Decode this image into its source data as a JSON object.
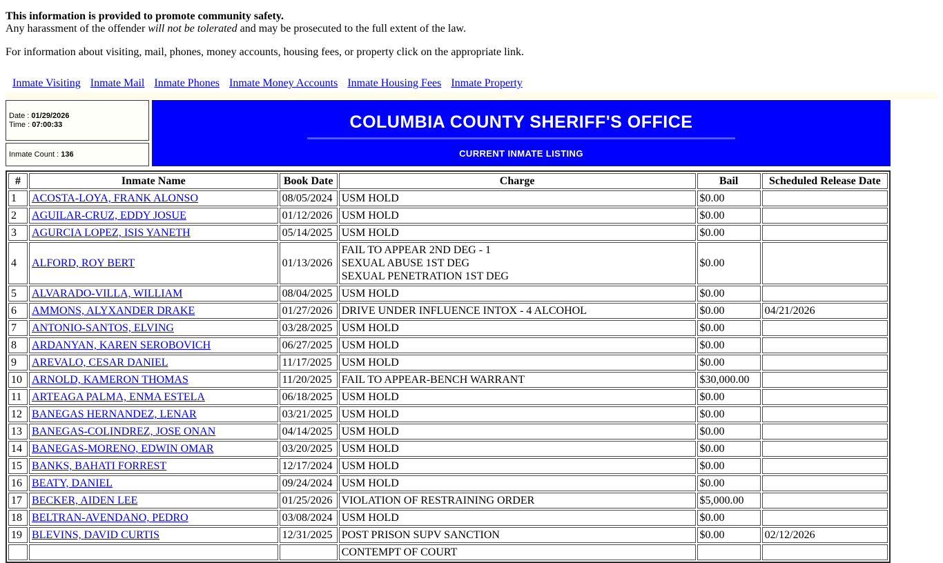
{
  "intro": {
    "line1": "This information is provided to promote community safety.",
    "line2_prefix": "Any harassment of the offender ",
    "line2_italic": "will not be tolerated",
    "line2_suffix": " and may be prosecuted to the full extent of the law.",
    "line3": "For information about visiting, mail, phones, money accounts, housing fees, or property click on the appropriate link."
  },
  "nav_links": [
    "Inmate Visiting",
    "Inmate Mail",
    "Inmate Phones",
    "Inmate Money Accounts",
    "Inmate Housing Fees",
    "Inmate Property"
  ],
  "info_box": {
    "date_label": "Date : ",
    "date_value": "01/29/2026",
    "time_label": "Time : ",
    "time_value": "07:00:33",
    "count_label": "Inmate Count : ",
    "count_value": "136"
  },
  "banner": {
    "title": "COLUMBIA COUNTY SHERIFF'S OFFICE",
    "subtitle": "CURRENT INMATE LISTING",
    "bg_color": "#0000FF",
    "text_color": "#FFFFFF"
  },
  "colors": {
    "link": "#0000EE"
  },
  "table": {
    "headers": [
      "#",
      "Inmate Name",
      "Book Date",
      "Charge",
      "Bail",
      "Scheduled Release Date"
    ],
    "rows": [
      {
        "num": "1",
        "name": "ACOSTA-LOYA, FRANK ALONSO",
        "book_date": "08/05/2024",
        "charges": [
          "USM HOLD"
        ],
        "bail": "$0.00",
        "release": ""
      },
      {
        "num": "2",
        "name": "AGUILAR-CRUZ, EDDY JOSUE",
        "book_date": "01/12/2026",
        "charges": [
          "USM HOLD"
        ],
        "bail": "$0.00",
        "release": ""
      },
      {
        "num": "3",
        "name": "AGURCIA LOPEZ, ISIS YANETH",
        "book_date": "05/14/2025",
        "charges": [
          "USM HOLD"
        ],
        "bail": "$0.00",
        "release": ""
      },
      {
        "num": "4",
        "name": "ALFORD, ROY BERT",
        "book_date": "01/13/2026",
        "charges": [
          "FAIL TO APPEAR 2ND DEG - 1",
          "SEXUAL ABUSE 1ST DEG",
          "SEXUAL PENETRATION 1ST DEG"
        ],
        "bail": "$0.00",
        "release": ""
      },
      {
        "num": "5",
        "name": "ALVARADO-VILLA, WILLIAM",
        "book_date": "08/04/2025",
        "charges": [
          "USM HOLD"
        ],
        "bail": "$0.00",
        "release": ""
      },
      {
        "num": "6",
        "name": "AMMONS, ALYXANDER DRAKE",
        "book_date": "01/27/2026",
        "charges": [
          "DRIVE UNDER INFLUENCE INTOX - 4 ALCOHOL"
        ],
        "bail": "$0.00",
        "release": "04/21/2026"
      },
      {
        "num": "7",
        "name": "ANTONIO-SANTOS, ELVING",
        "book_date": "03/28/2025",
        "charges": [
          "USM HOLD"
        ],
        "bail": "$0.00",
        "release": ""
      },
      {
        "num": "8",
        "name": "ARDANYAN, KAREN SEROBOVICH",
        "book_date": "06/27/2025",
        "charges": [
          "USM HOLD"
        ],
        "bail": "$0.00",
        "release": ""
      },
      {
        "num": "9",
        "name": "AREVALO, CESAR DANIEL",
        "book_date": "11/17/2025",
        "charges": [
          "USM HOLD"
        ],
        "bail": "$0.00",
        "release": ""
      },
      {
        "num": "10",
        "name": "ARNOLD, KAMERON THOMAS",
        "book_date": "11/20/2025",
        "charges": [
          "FAIL TO APPEAR-BENCH WARRANT"
        ],
        "bail": "$30,000.00",
        "release": ""
      },
      {
        "num": "11",
        "name": "ARTEAGA PALMA, ENMA ESTELA",
        "book_date": "06/18/2025",
        "charges": [
          "USM HOLD"
        ],
        "bail": "$0.00",
        "release": ""
      },
      {
        "num": "12",
        "name": "BANEGAS HERNANDEZ, LENAR",
        "book_date": "03/21/2025",
        "charges": [
          "USM HOLD"
        ],
        "bail": "$0.00",
        "release": ""
      },
      {
        "num": "13",
        "name": "BANEGAS-COLINDREZ, JOSE ONAN",
        "book_date": "04/14/2025",
        "charges": [
          "USM HOLD"
        ],
        "bail": "$0.00",
        "release": ""
      },
      {
        "num": "14",
        "name": "BANEGAS-MORENO, EDWIN OMAR",
        "book_date": "03/20/2025",
        "charges": [
          "USM HOLD"
        ],
        "bail": "$0.00",
        "release": ""
      },
      {
        "num": "15",
        "name": "BANKS, BAHATI FORREST",
        "book_date": "12/17/2024",
        "charges": [
          "USM HOLD"
        ],
        "bail": "$0.00",
        "release": ""
      },
      {
        "num": "16",
        "name": "BEATY, DANIEL",
        "book_date": "09/24/2024",
        "charges": [
          "USM HOLD"
        ],
        "bail": "$0.00",
        "release": ""
      },
      {
        "num": "17",
        "name": "BECKER, AIDEN LEE",
        "book_date": "01/25/2026",
        "charges": [
          "VIOLATION OF RESTRAINING ORDER"
        ],
        "bail": "$5,000.00",
        "release": ""
      },
      {
        "num": "18",
        "name": "BELTRAN-AVENDANO, PEDRO",
        "book_date": "03/08/2024",
        "charges": [
          "USM HOLD"
        ],
        "bail": "$0.00",
        "release": ""
      },
      {
        "num": "19",
        "name": "BLEVINS, DAVID CURTIS",
        "book_date": "12/31/2025",
        "charges": [
          "POST PRISON SUPV SANCTION"
        ],
        "bail": "$0.00",
        "release": "02/12/2026"
      },
      {
        "num": "",
        "name": "",
        "book_date": "",
        "charges": [
          "CONTEMPT OF COURT"
        ],
        "bail": "",
        "release": ""
      }
    ]
  }
}
